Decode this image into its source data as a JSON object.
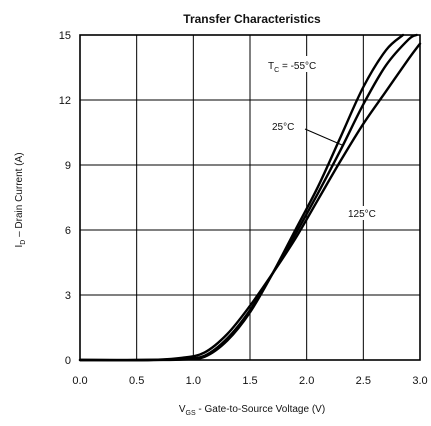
{
  "chart_data": {
    "type": "line",
    "title": "Transfer Characteristics",
    "xlabel": {
      "main": "V",
      "sub": "GS",
      "rest": " -  Gate-to-Source Voltage (V)"
    },
    "ylabel": {
      "main": "I",
      "sub": "D",
      "rest": " – Drain Current (A)"
    },
    "xlim": [
      0,
      3
    ],
    "ylim": [
      0,
      15
    ],
    "xticks": [
      "0.0",
      "0.5",
      "1.0",
      "1.5",
      "2.0",
      "2.5",
      "3.0"
    ],
    "yticks": [
      "0",
      "3",
      "6",
      "9",
      "12",
      "15"
    ],
    "grid": true,
    "series": [
      {
        "name": "T_C = -55°C",
        "x": [
          0,
          0.6,
          0.9,
          1.1,
          1.3,
          1.5,
          1.7,
          1.9,
          2.1,
          2.3,
          2.5,
          2.7,
          2.85
        ],
        "y": [
          0,
          0,
          0.02,
          0.15,
          0.9,
          2.2,
          4.0,
          6.0,
          8.0,
          10.3,
          12.6,
          14.3,
          15
        ]
      },
      {
        "name": "25°C",
        "x": [
          0,
          0.6,
          0.9,
          1.1,
          1.3,
          1.5,
          1.7,
          1.9,
          2.1,
          2.3,
          2.5,
          2.7,
          2.9,
          2.97
        ],
        "y": [
          0,
          0,
          0.05,
          0.2,
          1.0,
          2.3,
          4.0,
          5.8,
          7.7,
          9.7,
          11.8,
          13.6,
          14.8,
          15
        ]
      },
      {
        "name": "125°C",
        "x": [
          0,
          0.6,
          0.9,
          1.1,
          1.3,
          1.5,
          1.7,
          1.9,
          2.1,
          2.3,
          2.5,
          2.7,
          2.9,
          3.0
        ],
        "y": [
          0,
          0,
          0.1,
          0.35,
          1.2,
          2.5,
          4.0,
          5.6,
          7.4,
          9.2,
          10.9,
          12.4,
          13.9,
          14.6
        ]
      }
    ],
    "annotations": {
      "tc_label_main": "T",
      "tc_label_sub": "C",
      "tc_label_rest": " = -55°C",
      "label_25": "25°C",
      "label_125": "125°C"
    }
  }
}
